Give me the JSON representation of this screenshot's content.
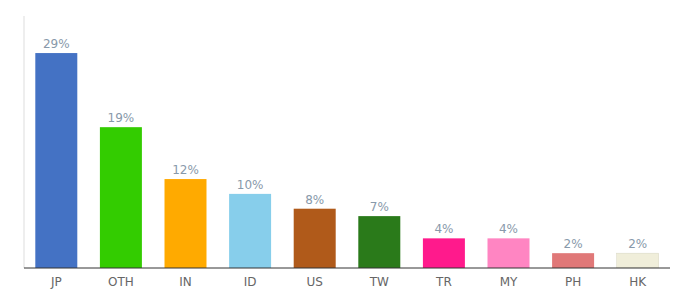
{
  "chart_data": {
    "type": "bar",
    "categories": [
      "JP",
      "OTH",
      "IN",
      "ID",
      "US",
      "TW",
      "TR",
      "MY",
      "PH",
      "HK"
    ],
    "values": [
      29,
      19,
      12,
      10,
      8,
      7,
      4,
      4,
      2,
      2
    ],
    "value_labels": [
      "29%",
      "19%",
      "12%",
      "10%",
      "8%",
      "7%",
      "4%",
      "4%",
      "2%",
      "2%"
    ],
    "colors": [
      "#4472c4",
      "#33cc00",
      "#ffaa00",
      "#87ceeb",
      "#b05a1a",
      "#2a7a1a",
      "#ff1a8c",
      "#ff85c2",
      "#e07878",
      "#f0eeda"
    ],
    "data_labels": true,
    "tick_labels": "x",
    "ylim": [
      0,
      34
    ]
  }
}
